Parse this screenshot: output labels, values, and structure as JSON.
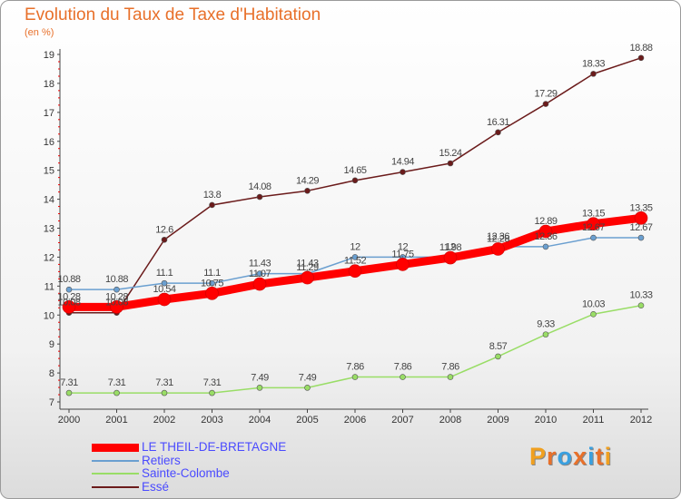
{
  "header": {
    "title": "Evolution du Taux de Taxe d'Habitation",
    "subtitle": "(en %)"
  },
  "logo": {
    "text": "Proxiti",
    "colors": [
      "#f0a020",
      "#e8702a",
      "#3aa0e0",
      "#e8702a",
      "#3aa0e0",
      "#e8702a",
      "#f0a020"
    ]
  },
  "chart_data": {
    "type": "line",
    "x": [
      "2000",
      "2001",
      "2002",
      "2003",
      "2004",
      "2005",
      "2006",
      "2007",
      "2008",
      "2009",
      "2010",
      "2011",
      "2012"
    ],
    "ylim": [
      7,
      19
    ],
    "yticks": [
      "7",
      "8",
      "9",
      "10",
      "11",
      "12",
      "13",
      "14",
      "15",
      "16",
      "17",
      "18",
      "19"
    ],
    "grid": false,
    "legend_position": "bottom-left",
    "series": [
      {
        "name": "LE THEIL-DE-BRETAGNE",
        "color": "#ff0000",
        "values": [
          10.28,
          10.28,
          10.54,
          10.75,
          11.07,
          11.29,
          11.52,
          11.75,
          11.98,
          12.28,
          12.89,
          13.15,
          13.35
        ],
        "labels": [
          "10.28",
          "10.28",
          "10.54",
          "10.75",
          "11.07",
          "11.29",
          "11.52",
          "11.75",
          "11.98",
          "12.28",
          "12.89",
          "13.15",
          "13.35"
        ]
      },
      {
        "name": "Retiers",
        "color": "#6a9fd0",
        "values": [
          10.88,
          10.88,
          11.1,
          11.1,
          11.43,
          11.43,
          12,
          12,
          12,
          12.36,
          12.36,
          12.67,
          12.67
        ],
        "labels": [
          "10.88",
          "10.88",
          "11.1",
          "11.1",
          "11.43",
          "11.43",
          "12",
          "12",
          "12",
          "12.36",
          "12.36",
          "12.67",
          "12.67"
        ]
      },
      {
        "name": "Sainte-Colombe",
        "color": "#99dd66",
        "values": [
          7.31,
          7.31,
          7.31,
          7.31,
          7.49,
          7.49,
          7.86,
          7.86,
          7.86,
          8.57,
          9.33,
          10.03,
          10.33
        ],
        "labels": [
          "7.31",
          "7.31",
          "7.31",
          "7.31",
          "7.49",
          "7.49",
          "7.86",
          "7.86",
          "7.86",
          "8.57",
          "9.33",
          "10.03",
          "10.33"
        ]
      },
      {
        "name": "Essé",
        "color": "#6b1b1b",
        "values": [
          10.08,
          10.08,
          12.6,
          13.8,
          14.08,
          14.29,
          14.65,
          14.94,
          15.24,
          16.31,
          17.29,
          18.33,
          18.88
        ],
        "labels": [
          "10.08",
          "10.08",
          "12.6",
          "13.8",
          "14.08",
          "14.29",
          "14.65",
          "14.94",
          "15.24",
          "16.31",
          "17.29",
          "18.33",
          "18.88"
        ]
      }
    ]
  }
}
